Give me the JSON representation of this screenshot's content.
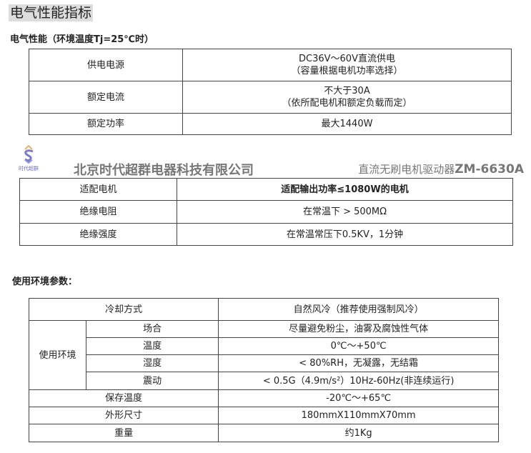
{
  "page_title": "电气性能指标",
  "section1": {
    "heading": "电气性能（环境温度Tj=25℃时）",
    "rows": [
      {
        "label": "供电电源",
        "value": [
          "DC36V～60V直流供电",
          "（容量根据电机功率选择）"
        ]
      },
      {
        "label": "额定电流",
        "value": [
          "不大于30A",
          "（依所配电机和额定负载而定）"
        ]
      },
      {
        "label": "额定功率",
        "value": [
          "最大1440W"
        ]
      }
    ]
  },
  "header": {
    "logo_text": "时代超群",
    "company": "北京时代超群电器科技有限公司",
    "product_prefix": "直流无刷电机驱动器",
    "product_model": "ZM-6630A"
  },
  "section2": {
    "rows": [
      {
        "label": "适配电机",
        "value": "适配输出功率≤1080W的电机"
      },
      {
        "label": "绝缘电阻",
        "value": "在常温下 > 500MΩ"
      },
      {
        "label": "绝缘强度",
        "value": "在常温常压下0.5KV，1分钟"
      }
    ]
  },
  "section3": {
    "heading": "使用环境参数：",
    "cooling": {
      "label": "冷却方式",
      "value": "自然风冷（推荐使用强制风冷）"
    },
    "env_label": "使用环境",
    "env_rows": [
      {
        "label": "场合",
        "value": "尽量避免粉尘，油雾及腐蚀性气体"
      },
      {
        "label": "温度",
        "value": "0℃～+50℃"
      },
      {
        "label": "湿度",
        "value": "< 80%RH，无凝露，无结霜"
      },
      {
        "label": "震动",
        "value": "< 0.5G（4.9m/s²）10Hz-60Hz(非连续运行)"
      }
    ],
    "storage": {
      "label": "保存温度",
      "value": "-20℃～+65℃"
    },
    "size": {
      "label": "外形尺寸",
      "value": "180mmX110mmX70mm"
    },
    "weight": {
      "label": "重量",
      "value": "约1Kg"
    }
  }
}
